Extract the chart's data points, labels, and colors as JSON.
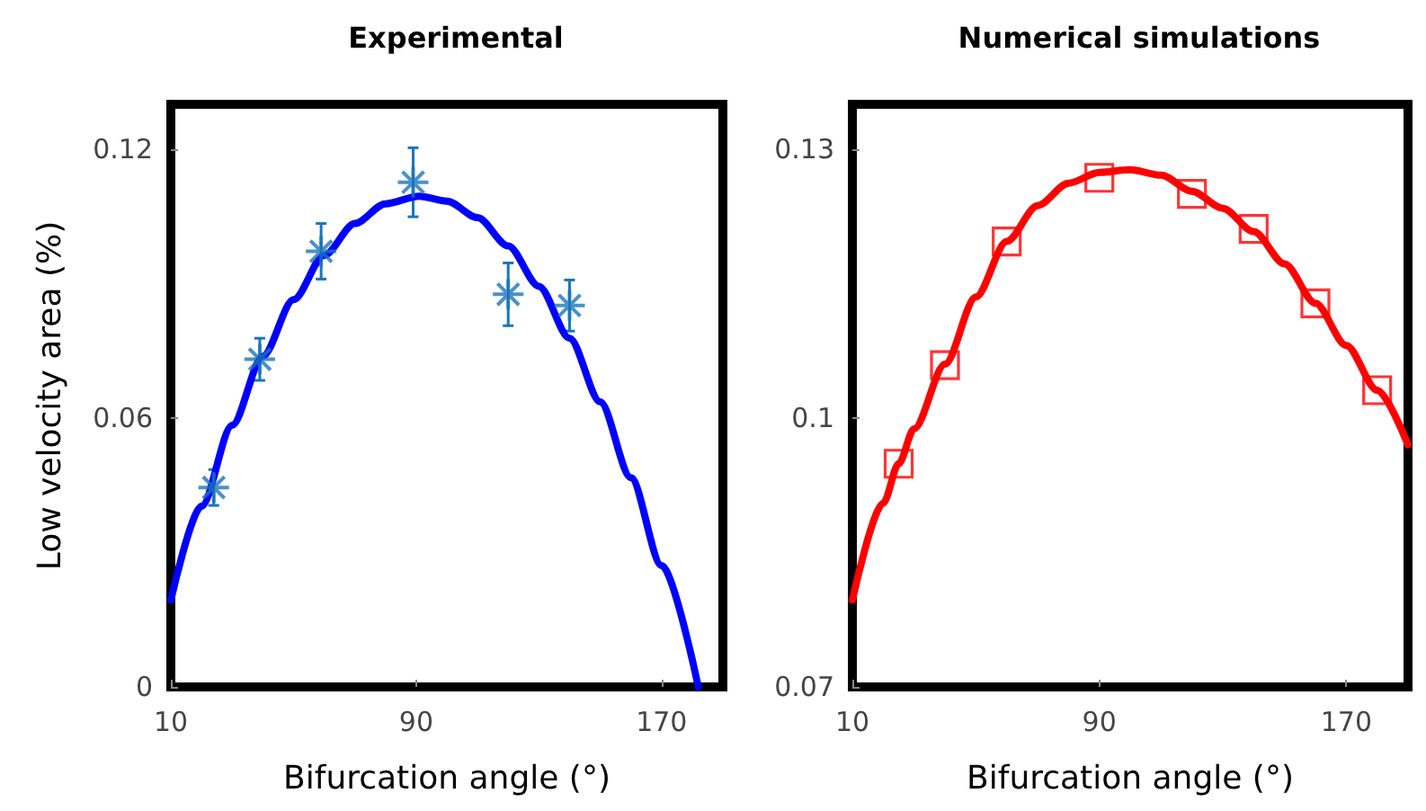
{
  "chart_data": [
    {
      "type": "scatter",
      "title": "Experimental",
      "xlabel": "Bifurcation angle (°)",
      "ylabel": "Low velocity area (%)",
      "xlim": [
        10,
        190
      ],
      "xticks": [
        10,
        90,
        170
      ],
      "ylim": [
        0,
        0.13
      ],
      "yticks": [
        0,
        0.06,
        0.12
      ],
      "grid": false,
      "series": [
        {
          "marker": "cross",
          "color": "#1a75bc",
          "x": [
            24,
            39,
            59,
            89,
            120,
            140
          ],
          "values": [
            0.0445,
            0.0731,
            0.0972,
            0.1126,
            0.0876,
            0.0851
          ],
          "errors": [
            0.004,
            0.0047,
            0.0062,
            0.0077,
            0.007,
            0.0057
          ]
        },
        {
          "type": "line",
          "marker": "none",
          "color": "#0000ff",
          "x": [
            10,
            20,
            30,
            40,
            50,
            60,
            70,
            80,
            91,
            100,
            110,
            120,
            130,
            140,
            150,
            160,
            170,
            182
          ],
          "values": [
            0.0194,
            0.0403,
            0.0584,
            0.0738,
            0.0864,
            0.0963,
            0.1034,
            0.1078,
            0.1095,
            0.1084,
            0.1047,
            0.0984,
            0.0894,
            0.0778,
            0.0636,
            0.0467,
            0.0271,
            0
          ]
        }
      ]
    },
    {
      "type": "scatter",
      "title": "Numerical simulations",
      "xlabel": "Bifurcation angle (°)",
      "xlim": [
        10,
        190
      ],
      "xticks": [
        10,
        90,
        170
      ],
      "ylim": [
        0.07,
        0.135
      ],
      "yticks": [
        0.07,
        0.1,
        0.13
      ],
      "grid": false,
      "series": [
        {
          "marker": "square",
          "color": "#ff0000",
          "x": [
            25,
            40,
            60,
            90,
            120,
            140,
            160,
            180
          ],
          "values": [
            0.0949,
            0.1059,
            0.1197,
            0.1268,
            0.125,
            0.1211,
            0.1128,
            0.1031
          ]
        },
        {
          "type": "line",
          "marker": "none",
          "color": "#ff0000",
          "x": [
            10,
            20,
            25,
            30,
            40,
            50,
            60,
            70,
            80,
            90,
            100,
            110,
            120,
            130,
            140,
            150,
            160,
            170,
            180,
            190
          ],
          "values": [
            0.0797,
            0.0905,
            0.0949,
            0.0988,
            0.106,
            0.1135,
            0.1197,
            0.1237,
            0.1262,
            0.1274,
            0.1277,
            0.1271,
            0.1253,
            0.1234,
            0.1208,
            0.1172,
            0.1128,
            0.1081,
            0.1031,
            0.097
          ]
        }
      ]
    }
  ]
}
